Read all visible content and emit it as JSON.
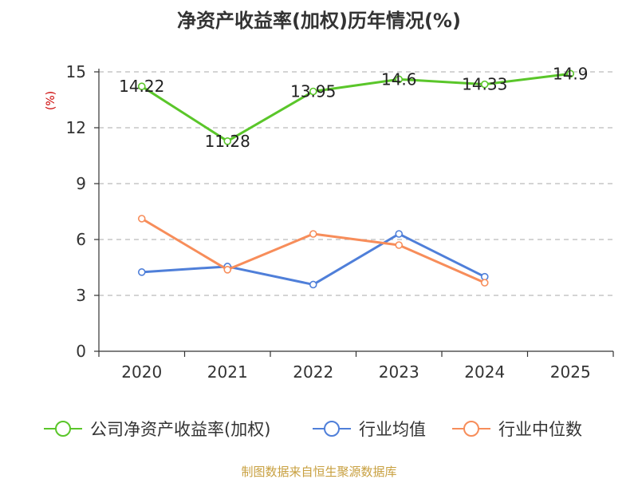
{
  "chart_data": {
    "type": "line",
    "title": "净资产收益率(加权)历年情况(%)",
    "ylabel": "(%)",
    "xlabel": "",
    "categories": [
      "2020",
      "2021",
      "2022",
      "2023",
      "2024",
      "2025"
    ],
    "ylim": [
      0,
      15
    ],
    "yticks": [
      0,
      3,
      6,
      9,
      12,
      15
    ],
    "grid": true,
    "legend_position": "bottom",
    "series": [
      {
        "name": "公司净资产收益率(加权)",
        "color": "#5ac62a",
        "values": [
          14.22,
          11.28,
          13.95,
          14.6,
          14.33,
          14.9
        ],
        "labels": [
          "14.22",
          "11.28",
          "13.95",
          "14.6",
          "14.33",
          "14.9"
        ],
        "show_labels": true
      },
      {
        "name": "行业均值",
        "color": "#4f7fd9",
        "values": [
          4.25,
          4.55,
          3.58,
          6.3,
          4.0,
          null
        ],
        "show_labels": false
      },
      {
        "name": "行业中位数",
        "color": "#f78d5a",
        "values": [
          7.12,
          4.38,
          6.3,
          5.7,
          3.68,
          null
        ],
        "show_labels": false
      }
    ],
    "source": "制图数据来自恒生聚源数据库"
  }
}
